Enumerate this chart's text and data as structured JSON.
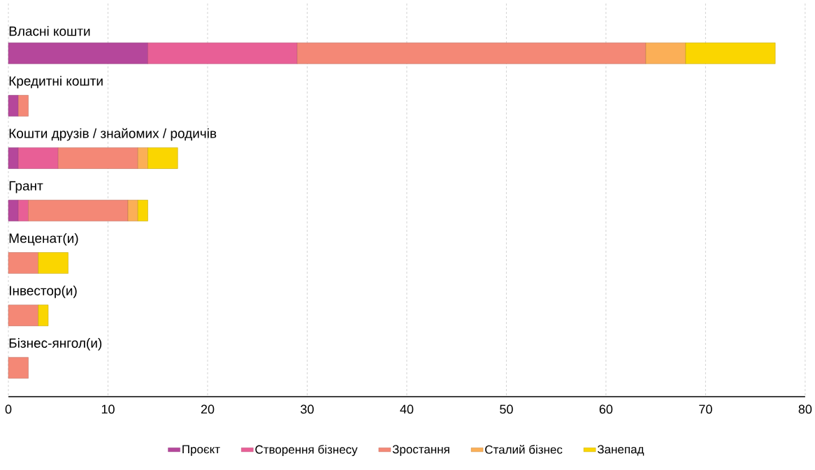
{
  "chart_data": {
    "type": "bar",
    "orientation": "horizontal",
    "stacked": true,
    "categories": [
      "Власні кошти",
      "Кредитні кошти",
      "Кошти друзів / знайомих / родичів",
      "Грант",
      "Меценат(и)",
      "Інвестор(и)",
      "Бізнес-янгол(и)"
    ],
    "series": [
      {
        "name": "Проєкт",
        "color": "#b5479b",
        "values": [
          14,
          1,
          1,
          1,
          null,
          null,
          null
        ]
      },
      {
        "name": "Створення бізнесу",
        "color": "#e85f96",
        "values": [
          15,
          null,
          4,
          1,
          null,
          null,
          null
        ]
      },
      {
        "name": "Зростання",
        "color": "#f48876",
        "values": [
          35,
          1,
          8,
          10,
          3,
          3,
          2
        ]
      },
      {
        "name": "Сталий бізнес",
        "color": "#fbaf57",
        "values": [
          4,
          null,
          1,
          1,
          null,
          null,
          null
        ]
      },
      {
        "name": "Занепад",
        "color": "#fad600",
        "values": [
          9,
          null,
          3,
          1,
          3,
          1,
          null
        ]
      }
    ],
    "xlim": [
      0,
      80
    ],
    "xticks": [
      0,
      10,
      20,
      30,
      40,
      50,
      60,
      70,
      80
    ],
    "grid": "x",
    "legend": "bottom"
  }
}
